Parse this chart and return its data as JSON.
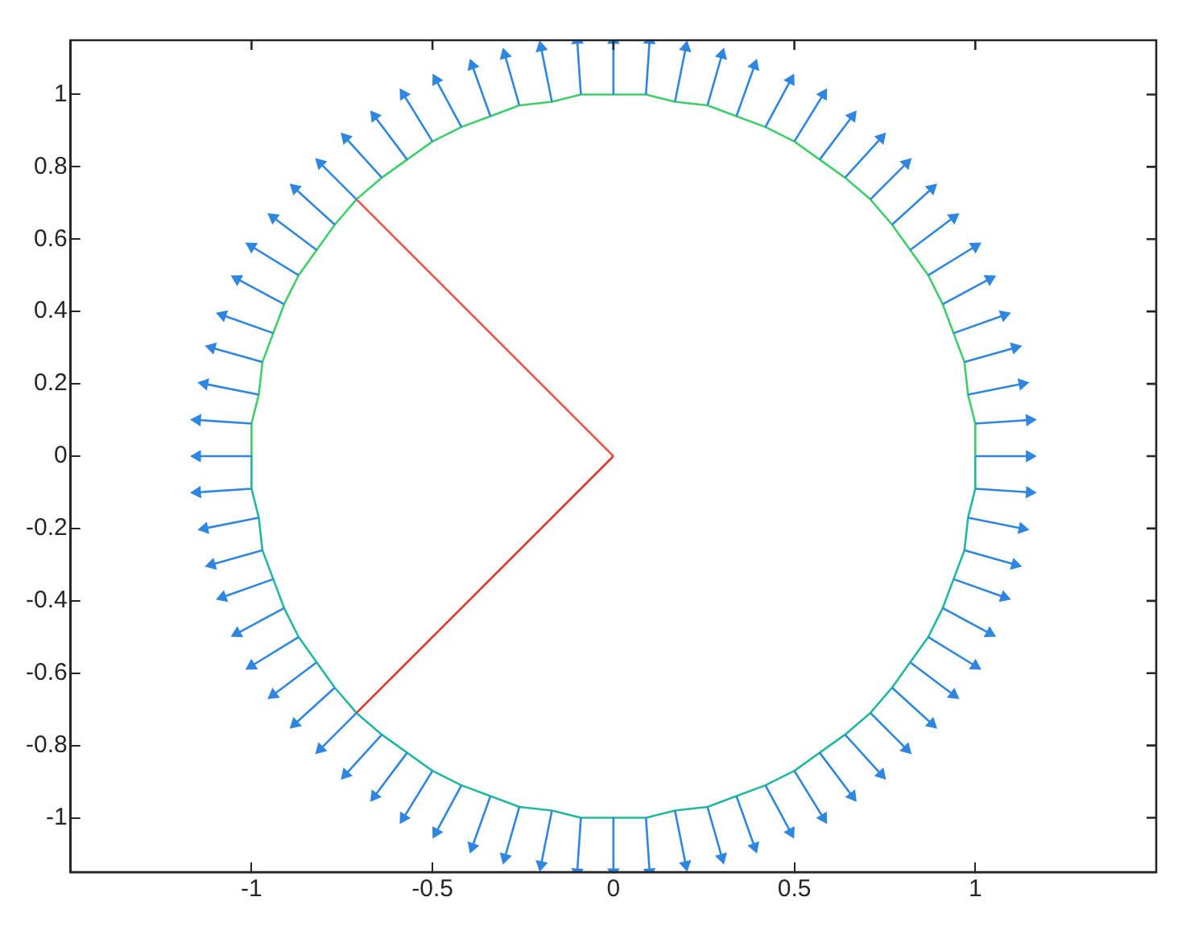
{
  "chart_data": {
    "type": "line",
    "xlim": [
      -1.5,
      1.5
    ],
    "ylim": [
      -1.15,
      1.15
    ],
    "xticks": [
      -1,
      -0.5,
      0,
      0.5,
      1
    ],
    "yticks": [
      -1,
      -0.8,
      -0.6,
      -0.4,
      -0.2,
      0,
      0.2,
      0.4,
      0.6,
      0.8,
      1
    ],
    "grid": false,
    "legend": false,
    "line_style": "solid",
    "series": [
      {
        "color": "#3ecf6a",
        "marker": "none",
        "x": [
          1,
          1,
          0.98,
          0.97,
          0.94,
          0.91,
          0.87,
          0.82,
          0.77,
          0.71,
          0.64,
          0.57,
          0.5,
          0.42,
          0.34,
          0.26,
          0.17,
          0.09,
          0,
          -0.09,
          -0.17,
          -0.26,
          -0.34,
          -0.42,
          -0.5,
          -0.57,
          -0.64,
          -0.71,
          -0.77,
          -0.82,
          -0.87,
          -0.91,
          -0.94,
          -0.97,
          -0.98,
          -1,
          -1
        ],
        "values": [
          0,
          0.09,
          0.17,
          0.26,
          0.34,
          0.42,
          0.5,
          0.57,
          0.64,
          0.71,
          0.77,
          0.82,
          0.87,
          0.91,
          0.94,
          0.97,
          0.98,
          1,
          1,
          1,
          0.98,
          0.97,
          0.94,
          0.91,
          0.87,
          0.82,
          0.77,
          0.71,
          0.64,
          0.57,
          0.5,
          0.42,
          0.34,
          0.26,
          0.17,
          0.09,
          0
        ]
      },
      {
        "color": "#22b8a0",
        "marker": "none",
        "x": [
          -1,
          -1,
          -0.98,
          -0.97,
          -0.94,
          -0.91,
          -0.87,
          -0.82,
          -0.77,
          -0.71,
          -0.64,
          -0.57,
          -0.5,
          -0.42,
          -0.34,
          -0.26,
          -0.17,
          -0.09,
          0,
          0.09,
          0.17,
          0.26,
          0.34,
          0.42,
          0.5,
          0.57,
          0.64,
          0.71,
          0.77,
          0.82,
          0.87,
          0.91,
          0.94,
          0.97,
          0.98,
          1,
          1
        ],
        "values": [
          0,
          -0.09,
          -0.17,
          -0.26,
          -0.34,
          -0.42,
          -0.5,
          -0.57,
          -0.64,
          -0.71,
          -0.77,
          -0.82,
          -0.87,
          -0.91,
          -0.94,
          -0.97,
          -0.98,
          -1,
          -1,
          -1,
          -0.98,
          -0.97,
          -0.94,
          -0.91,
          -0.87,
          -0.82,
          -0.77,
          -0.71,
          -0.64,
          -0.57,
          -0.5,
          -0.42,
          -0.34,
          -0.26,
          -0.17,
          -0.09,
          0
        ]
      },
      {
        "color": "#e8574a",
        "marker": "none",
        "x": [
          -0.71,
          0
        ],
        "values": [
          0.71,
          0
        ]
      },
      {
        "color": "#d9392c",
        "marker": "none",
        "x": [
          -0.71,
          0
        ],
        "values": [
          -0.71,
          0
        ]
      },
      {
        "color": "#2f86e0",
        "marker": "triangle",
        "x": [
          1,
          1.15
        ],
        "values": [
          0,
          0
        ]
      },
      {
        "color": "#2f86e0",
        "marker": "triangle",
        "x": [
          1,
          1.15
        ],
        "values": [
          0.09,
          0.1
        ]
      },
      {
        "color": "#2f86e0",
        "marker": "triangle",
        "x": [
          0.98,
          1.13
        ],
        "values": [
          0.17,
          0.2
        ]
      },
      {
        "color": "#2f86e0",
        "marker": "triangle",
        "x": [
          0.97,
          1.11
        ],
        "values": [
          0.26,
          0.3
        ]
      },
      {
        "color": "#2f86e0",
        "marker": "triangle",
        "x": [
          0.94,
          1.08
        ],
        "values": [
          0.34,
          0.39
        ]
      },
      {
        "color": "#2f86e0",
        "marker": "triangle",
        "x": [
          0.91,
          1.04
        ],
        "values": [
          0.42,
          0.49
        ]
      },
      {
        "color": "#2f86e0",
        "marker": "triangle",
        "x": [
          0.87,
          1
        ],
        "values": [
          0.5,
          0.58
        ]
      },
      {
        "color": "#2f86e0",
        "marker": "triangle",
        "x": [
          0.82,
          0.94
        ],
        "values": [
          0.57,
          0.66
        ]
      },
      {
        "color": "#2f86e0",
        "marker": "triangle",
        "x": [
          0.77,
          0.88
        ],
        "values": [
          0.64,
          0.74
        ]
      },
      {
        "color": "#2f86e0",
        "marker": "triangle",
        "x": [
          0.71,
          0.81
        ],
        "values": [
          0.71,
          0.81
        ]
      },
      {
        "color": "#2f86e0",
        "marker": "triangle",
        "x": [
          0.64,
          0.74
        ],
        "values": [
          0.77,
          0.88
        ]
      },
      {
        "color": "#2f86e0",
        "marker": "triangle",
        "x": [
          0.57,
          0.66
        ],
        "values": [
          0.82,
          0.94
        ]
      },
      {
        "color": "#2f86e0",
        "marker": "triangle",
        "x": [
          0.5,
          0.58
        ],
        "values": [
          0.87,
          1
        ]
      },
      {
        "color": "#2f86e0",
        "marker": "triangle",
        "x": [
          0.42,
          0.49
        ],
        "values": [
          0.91,
          1.04
        ]
      },
      {
        "color": "#2f86e0",
        "marker": "triangle",
        "x": [
          0.34,
          0.39
        ],
        "values": [
          0.94,
          1.08
        ]
      },
      {
        "color": "#2f86e0",
        "marker": "triangle",
        "x": [
          0.26,
          0.3
        ],
        "values": [
          0.97,
          1.11
        ]
      },
      {
        "color": "#2f86e0",
        "marker": "triangle",
        "x": [
          0.17,
          0.2
        ],
        "values": [
          0.98,
          1.13
        ]
      },
      {
        "color": "#2f86e0",
        "marker": "triangle",
        "x": [
          0.09,
          0.1
        ],
        "values": [
          1,
          1.15
        ]
      },
      {
        "color": "#2f86e0",
        "marker": "triangle",
        "x": [
          0,
          0
        ],
        "values": [
          1,
          1.15
        ]
      },
      {
        "color": "#2f86e0",
        "marker": "triangle",
        "x": [
          -0.09,
          -0.1
        ],
        "values": [
          1,
          1.15
        ]
      },
      {
        "color": "#2f86e0",
        "marker": "triangle",
        "x": [
          -0.17,
          -0.2
        ],
        "values": [
          0.98,
          1.13
        ]
      },
      {
        "color": "#2f86e0",
        "marker": "triangle",
        "x": [
          -0.26,
          -0.3
        ],
        "values": [
          0.97,
          1.11
        ]
      },
      {
        "color": "#2f86e0",
        "marker": "triangle",
        "x": [
          -0.34,
          -0.39
        ],
        "values": [
          0.94,
          1.08
        ]
      },
      {
        "color": "#2f86e0",
        "marker": "triangle",
        "x": [
          -0.42,
          -0.49
        ],
        "values": [
          0.91,
          1.04
        ]
      },
      {
        "color": "#2f86e0",
        "marker": "triangle",
        "x": [
          -0.5,
          -0.58
        ],
        "values": [
          0.87,
          1
        ]
      },
      {
        "color": "#2f86e0",
        "marker": "triangle",
        "x": [
          -0.57,
          -0.66
        ],
        "values": [
          0.82,
          0.94
        ]
      },
      {
        "color": "#2f86e0",
        "marker": "triangle",
        "x": [
          -0.64,
          -0.74
        ],
        "values": [
          0.77,
          0.88
        ]
      },
      {
        "color": "#2f86e0",
        "marker": "triangle",
        "x": [
          -0.71,
          -0.81
        ],
        "values": [
          0.71,
          0.81
        ]
      },
      {
        "color": "#2f86e0",
        "marker": "triangle",
        "x": [
          -0.77,
          -0.88
        ],
        "values": [
          0.64,
          0.74
        ]
      },
      {
        "color": "#2f86e0",
        "marker": "triangle",
        "x": [
          -0.82,
          -0.94
        ],
        "values": [
          0.57,
          0.66
        ]
      },
      {
        "color": "#2f86e0",
        "marker": "triangle",
        "x": [
          -0.87,
          -1
        ],
        "values": [
          0.5,
          0.58
        ]
      },
      {
        "color": "#2f86e0",
        "marker": "triangle",
        "x": [
          -0.91,
          -1.04
        ],
        "values": [
          0.42,
          0.49
        ]
      },
      {
        "color": "#2f86e0",
        "marker": "triangle",
        "x": [
          -0.94,
          -1.08
        ],
        "values": [
          0.34,
          0.39
        ]
      },
      {
        "color": "#2f86e0",
        "marker": "triangle",
        "x": [
          -0.97,
          -1.11
        ],
        "values": [
          0.26,
          0.3
        ]
      },
      {
        "color": "#2f86e0",
        "marker": "triangle",
        "x": [
          -0.98,
          -1.13
        ],
        "values": [
          0.17,
          0.2
        ]
      },
      {
        "color": "#2f86e0",
        "marker": "triangle",
        "x": [
          -1,
          -1.15
        ],
        "values": [
          0.09,
          0.1
        ]
      },
      {
        "color": "#2f86e0",
        "marker": "triangle",
        "x": [
          -1,
          -1.15
        ],
        "values": [
          0,
          0
        ]
      },
      {
        "color": "#2f86e0",
        "marker": "triangle",
        "x": [
          -1,
          -1.15
        ],
        "values": [
          -0.09,
          -0.1
        ]
      },
      {
        "color": "#2f86e0",
        "marker": "triangle",
        "x": [
          -0.98,
          -1.13
        ],
        "values": [
          -0.17,
          -0.2
        ]
      },
      {
        "color": "#2f86e0",
        "marker": "triangle",
        "x": [
          -0.97,
          -1.11
        ],
        "values": [
          -0.26,
          -0.3
        ]
      },
      {
        "color": "#2f86e0",
        "marker": "triangle",
        "x": [
          -0.94,
          -1.08
        ],
        "values": [
          -0.34,
          -0.39
        ]
      },
      {
        "color": "#2f86e0",
        "marker": "triangle",
        "x": [
          -0.91,
          -1.04
        ],
        "values": [
          -0.42,
          -0.49
        ]
      },
      {
        "color": "#2f86e0",
        "marker": "triangle",
        "x": [
          -0.87,
          -1
        ],
        "values": [
          -0.5,
          -0.58
        ]
      },
      {
        "color": "#2f86e0",
        "marker": "triangle",
        "x": [
          -0.82,
          -0.94
        ],
        "values": [
          -0.57,
          -0.66
        ]
      },
      {
        "color": "#2f86e0",
        "marker": "triangle",
        "x": [
          -0.77,
          -0.88
        ],
        "values": [
          -0.64,
          -0.74
        ]
      },
      {
        "color": "#2f86e0",
        "marker": "triangle",
        "x": [
          -0.71,
          -0.81
        ],
        "values": [
          -0.71,
          -0.81
        ]
      },
      {
        "color": "#2f86e0",
        "marker": "triangle",
        "x": [
          -0.64,
          -0.74
        ],
        "values": [
          -0.77,
          -0.88
        ]
      },
      {
        "color": "#2f86e0",
        "marker": "triangle",
        "x": [
          -0.57,
          -0.66
        ],
        "values": [
          -0.82,
          -0.94
        ]
      },
      {
        "color": "#2f86e0",
        "marker": "triangle",
        "x": [
          -0.5,
          -0.58
        ],
        "values": [
          -0.87,
          -1
        ]
      },
      {
        "color": "#2f86e0",
        "marker": "triangle",
        "x": [
          -0.42,
          -0.49
        ],
        "values": [
          -0.91,
          -1.04
        ]
      },
      {
        "color": "#2f86e0",
        "marker": "triangle",
        "x": [
          -0.34,
          -0.39
        ],
        "values": [
          -0.94,
          -1.08
        ]
      },
      {
        "color": "#2f86e0",
        "marker": "triangle",
        "x": [
          -0.26,
          -0.3
        ],
        "values": [
          -0.97,
          -1.11
        ]
      },
      {
        "color": "#2f86e0",
        "marker": "triangle",
        "x": [
          -0.17,
          -0.2
        ],
        "values": [
          -0.98,
          -1.13
        ]
      },
      {
        "color": "#2f86e0",
        "marker": "triangle",
        "x": [
          -0.09,
          -0.1
        ],
        "values": [
          -1,
          -1.15
        ]
      },
      {
        "color": "#2f86e0",
        "marker": "triangle",
        "x": [
          0,
          0
        ],
        "values": [
          -1,
          -1.15
        ]
      },
      {
        "color": "#2f86e0",
        "marker": "triangle",
        "x": [
          0.09,
          0.1
        ],
        "values": [
          -1,
          -1.15
        ]
      },
      {
        "color": "#2f86e0",
        "marker": "triangle",
        "x": [
          0.17,
          0.2
        ],
        "values": [
          -0.98,
          -1.13
        ]
      },
      {
        "color": "#2f86e0",
        "marker": "triangle",
        "x": [
          0.26,
          0.3
        ],
        "values": [
          -0.97,
          -1.11
        ]
      },
      {
        "color": "#2f86e0",
        "marker": "triangle",
        "x": [
          0.34,
          0.39
        ],
        "values": [
          -0.94,
          -1.08
        ]
      },
      {
        "color": "#2f86e0",
        "marker": "triangle",
        "x": [
          0.42,
          0.49
        ],
        "values": [
          -0.91,
          -1.04
        ]
      },
      {
        "color": "#2f86e0",
        "marker": "triangle",
        "x": [
          0.5,
          0.58
        ],
        "values": [
          -0.87,
          -1
        ]
      },
      {
        "color": "#2f86e0",
        "marker": "triangle",
        "x": [
          0.57,
          0.66
        ],
        "values": [
          -0.82,
          -0.94
        ]
      },
      {
        "color": "#2f86e0",
        "marker": "triangle",
        "x": [
          0.64,
          0.74
        ],
        "values": [
          -0.77,
          -0.88
        ]
      },
      {
        "color": "#2f86e0",
        "marker": "triangle",
        "x": [
          0.71,
          0.81
        ],
        "values": [
          -0.71,
          -0.81
        ]
      },
      {
        "color": "#2f86e0",
        "marker": "triangle",
        "x": [
          0.77,
          0.88
        ],
        "values": [
          -0.64,
          -0.74
        ]
      },
      {
        "color": "#2f86e0",
        "marker": "triangle",
        "x": [
          0.82,
          0.94
        ],
        "values": [
          -0.57,
          -0.66
        ]
      },
      {
        "color": "#2f86e0",
        "marker": "triangle",
        "x": [
          0.87,
          1
        ],
        "values": [
          -0.5,
          -0.58
        ]
      },
      {
        "color": "#2f86e0",
        "marker": "triangle",
        "x": [
          0.91,
          1.04
        ],
        "values": [
          -0.42,
          -0.49
        ]
      },
      {
        "color": "#2f86e0",
        "marker": "triangle",
        "x": [
          0.94,
          1.08
        ],
        "values": [
          -0.34,
          -0.39
        ]
      },
      {
        "color": "#2f86e0",
        "marker": "triangle",
        "x": [
          0.97,
          1.11
        ],
        "values": [
          -0.26,
          -0.3
        ]
      },
      {
        "color": "#2f86e0",
        "marker": "triangle",
        "x": [
          0.98,
          1.13
        ],
        "values": [
          -0.17,
          -0.2
        ]
      },
      {
        "color": "#2f86e0",
        "marker": "triangle",
        "x": [
          1,
          1.15
        ],
        "values": [
          -0.09,
          -0.1
        ]
      }
    ]
  }
}
